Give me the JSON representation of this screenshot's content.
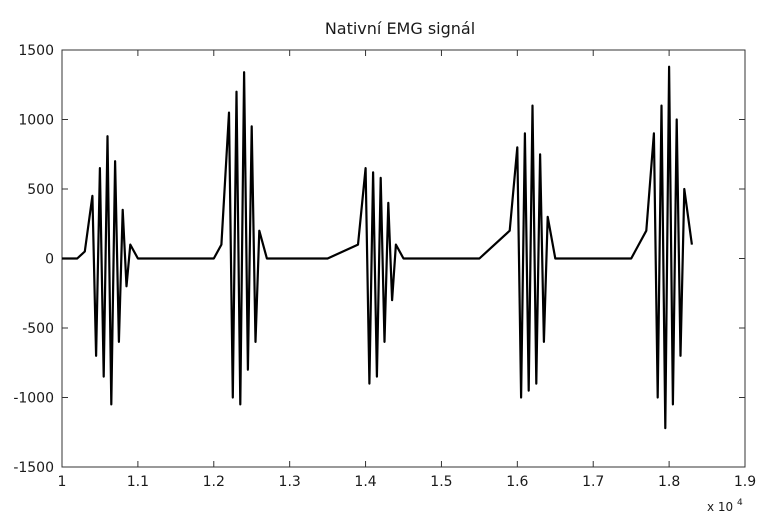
{
  "chart_data": {
    "type": "line",
    "title": "Nativní EMG signál",
    "xlabel": "",
    "ylabel": "",
    "x_multiplier_label": "x 10",
    "x_multiplier_exponent": "4",
    "xlim": [
      1.0,
      1.9
    ],
    "ylim": [
      -1500,
      1500
    ],
    "x_ticks": [
      1,
      1.1,
      1.2,
      1.3,
      1.4,
      1.5,
      1.6,
      1.7,
      1.8,
      1.9
    ],
    "x_tick_labels": [
      "1",
      "1.1",
      "1.2",
      "1.3",
      "1.4",
      "1.5",
      "1.6",
      "1.7",
      "1.8",
      "1.9"
    ],
    "y_ticks": [
      1500,
      1000,
      500,
      0,
      -500,
      -1000,
      -1500
    ],
    "y_tick_labels": [
      "1500",
      "1000",
      "500",
      "0",
      "-500",
      "-1000",
      "-1500"
    ],
    "grid": false,
    "line_color": "#000000",
    "series": [
      {
        "x": [
          1.0,
          1.02,
          1.03,
          1.04,
          1.045,
          1.05,
          1.055,
          1.06,
          1.065,
          1.07,
          1.075,
          1.08,
          1.085,
          1.09,
          1.1,
          1.15,
          1.2,
          1.21,
          1.22,
          1.225,
          1.23,
          1.235,
          1.24,
          1.245,
          1.25,
          1.255,
          1.26,
          1.27,
          1.3,
          1.35,
          1.39,
          1.4,
          1.405,
          1.41,
          1.415,
          1.42,
          1.425,
          1.43,
          1.435,
          1.44,
          1.45,
          1.5,
          1.55,
          1.59,
          1.6,
          1.605,
          1.61,
          1.615,
          1.62,
          1.625,
          1.63,
          1.635,
          1.64,
          1.65,
          1.7,
          1.75,
          1.77,
          1.78,
          1.785,
          1.79,
          1.795,
          1.8,
          1.805,
          1.81,
          1.815,
          1.82,
          1.83
        ],
        "y": [
          0,
          0,
          50,
          450,
          -700,
          650,
          -850,
          880,
          -1050,
          700,
          -600,
          350,
          -200,
          100,
          0,
          0,
          0,
          100,
          1050,
          -1000,
          1200,
          -1050,
          1340,
          -800,
          950,
          -600,
          200,
          0,
          0,
          0,
          100,
          650,
          -900,
          620,
          -850,
          580,
          -600,
          400,
          -300,
          100,
          0,
          0,
          0,
          200,
          800,
          -1000,
          900,
          -950,
          1100,
          -900,
          750,
          -600,
          300,
          0,
          0,
          0,
          200,
          900,
          -1000,
          1100,
          -1220,
          1380,
          -1050,
          1000,
          -700,
          500,
          100
        ]
      }
    ]
  }
}
